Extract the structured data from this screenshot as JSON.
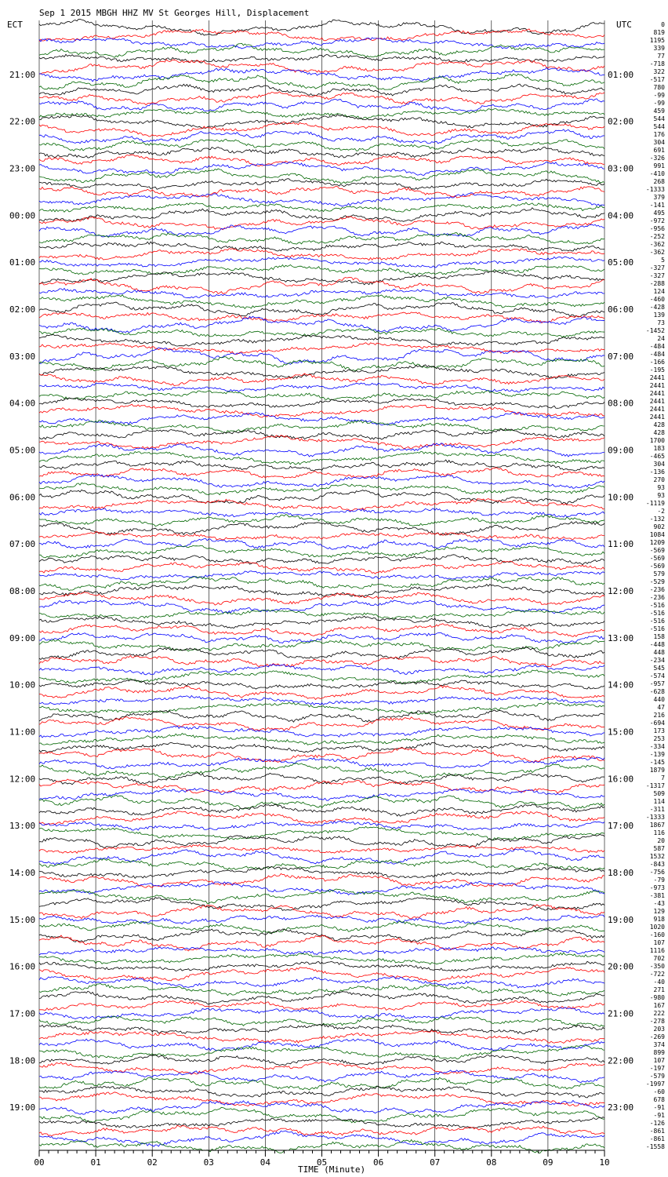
{
  "header": {
    "title": "Sep  1 2015 MBGH HHZ MV St Georges Hill, Displacement",
    "left_axis_label": "ECT",
    "right_axis_label": "UTC",
    "x_axis_label": "TIME (Minute)"
  },
  "colors": {
    "trace_cycle": [
      "#000000",
      "#ff0000",
      "#0000ff",
      "#006600"
    ],
    "grid": "#000000",
    "background": "#ffffff"
  },
  "chart_data": {
    "type": "line",
    "title": "Sep  1 2015 MBGH HHZ MV St Georges Hill, Displacement",
    "xlabel": "TIME (Minute)",
    "xlim": [
      0,
      10
    ],
    "x_ticks": [
      "00",
      "01",
      "02",
      "03",
      "04",
      "05",
      "06",
      "07",
      "08",
      "09",
      "10"
    ],
    "left_ticks": [
      "21:00",
      "22:00",
      "23:00",
      "00:00",
      "01:00",
      "02:00",
      "03:00",
      "04:00",
      "05:00",
      "06:00",
      "07:00",
      "08:00",
      "09:00",
      "10:00",
      "11:00",
      "12:00",
      "13:00",
      "14:00",
      "15:00",
      "16:00",
      "17:00",
      "18:00",
      "19:00"
    ],
    "right_ticks": [
      "01:00",
      "02:00",
      "03:00",
      "04:00",
      "05:00",
      "06:00",
      "07:00",
      "08:00",
      "09:00",
      "10:00",
      "11:00",
      "12:00",
      "13:00",
      "14:00",
      "15:00",
      "16:00",
      "17:00",
      "18:00",
      "19:00",
      "20:00",
      "21:00",
      "22:00",
      "23:00"
    ],
    "trace_count": 144,
    "minutes_per_trace": 10,
    "grid": true,
    "trace_values": [
      "0",
      "819",
      "1195",
      "339",
      "77",
      "-718",
      "322",
      "-517",
      "780",
      "-99",
      "-99",
      "459",
      "544",
      "544",
      "176",
      "304",
      "691",
      "-326",
      "991",
      "-410",
      "268",
      "-1333",
      "379",
      "-141",
      "495",
      "-972",
      "-956",
      "-252",
      "-362",
      "-362",
      "5",
      "-327",
      "-327",
      "-288",
      "124",
      "-460",
      "-428",
      "139",
      "73",
      "-1452",
      "24",
      "-484",
      "-484",
      "-166",
      "-195",
      "2441",
      "2441",
      "2441",
      "2441",
      "2441",
      "2441",
      "428",
      "428",
      "1700",
      "183",
      "-465",
      "304",
      "-136",
      "270",
      "93",
      "93",
      "-1119",
      "-2",
      "-132",
      "902",
      "1084",
      "1209",
      "-569",
      "-569",
      "-569",
      "579",
      "-529",
      "-236",
      "-236",
      "-516",
      "-516",
      "-516",
      "-516",
      "158",
      "-448",
      "448",
      "-234",
      "545",
      "-574",
      "-957",
      "-628",
      "440",
      "47",
      "216",
      "-694",
      "173",
      "253",
      "-334",
      "-139",
      "-145",
      "1879",
      "7",
      "-1317",
      "509",
      "114",
      "-311",
      "-1333",
      "1867",
      "116",
      "20",
      "587",
      "1532",
      "-843",
      "-756",
      "-79",
      "-973",
      "-381",
      "-43",
      "129",
      "918",
      "1020",
      "-160",
      "107",
      "1116",
      "702",
      "-350",
      "-722",
      "-40",
      "271",
      "-980",
      "167",
      "222",
      "-278",
      "203",
      "-269",
      "374",
      "899",
      "107",
      "-197",
      "-579",
      "-1997",
      "-60",
      "678",
      "-91",
      "-91",
      "-126",
      "-861",
      "-861",
      "-1558"
    ]
  }
}
